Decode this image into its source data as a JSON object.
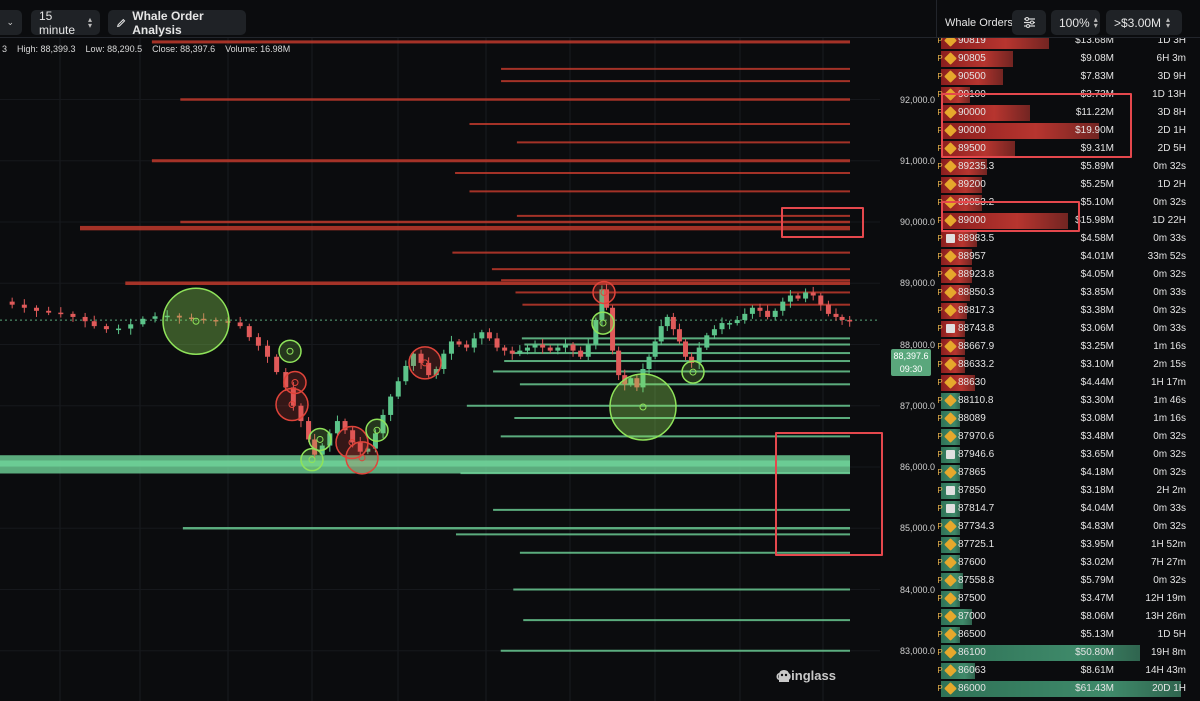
{
  "toolbar": {
    "interval": "15 minute",
    "whale_button": "Whale Order Analysis",
    "panel_title": "Whale Orders",
    "zoom": "100%",
    "min_size": ">$3.00M"
  },
  "ohlc": {
    "text": "3    High: 88,399.3    Low: 88,290.5    Close: 88,397.6    Volume: 16.98M"
  },
  "axis": {
    "labels": [
      "92,000.0",
      "91,000.0",
      "90,000.0",
      "89,000.0",
      "88,000.0",
      "87,000.0",
      "86,000.0",
      "85,000.0",
      "84,000.0",
      "83,000.0"
    ],
    "current_price": "88,397.6",
    "countdown": "09:30"
  },
  "watermark": "coinglass",
  "orders": [
    {
      "tag": "P",
      "icon": "binance",
      "price": "90819",
      "amount": "$13.68M",
      "time": "1D 3H",
      "side": "sell",
      "fill": 0.45
    },
    {
      "tag": "P",
      "icon": "binance",
      "price": "90805",
      "amount": "$9.08M",
      "time": "6H 3m",
      "side": "sell",
      "fill": 0.3
    },
    {
      "tag": "P",
      "icon": "binance",
      "price": "90500",
      "amount": "$7.83M",
      "time": "3D 9H",
      "side": "sell",
      "fill": 0.26
    },
    {
      "tag": "P",
      "icon": "binance",
      "price": "90100",
      "amount": "$3.73M",
      "time": "1D 13H",
      "side": "sell",
      "fill": 0.12
    },
    {
      "tag": "P",
      "icon": "binance",
      "price": "90000",
      "amount": "$11.22M",
      "time": "3D 8H",
      "side": "sell",
      "fill": 0.37
    },
    {
      "tag": "P",
      "icon": "binance",
      "price": "90000",
      "amount": "$19.90M",
      "time": "2D 1H",
      "side": "sell",
      "fill": 0.66
    },
    {
      "tag": "P",
      "icon": "binance",
      "price": "89500",
      "amount": "$9.31M",
      "time": "2D 5H",
      "side": "sell",
      "fill": 0.31
    },
    {
      "tag": "P",
      "icon": "binance",
      "price": "89235.3",
      "amount": "$5.89M",
      "time": "0m 32s",
      "side": "sell",
      "fill": 0.19
    },
    {
      "tag": "P",
      "icon": "binance",
      "price": "89200",
      "amount": "$5.25M",
      "time": "1D 2H",
      "side": "sell",
      "fill": 0.17
    },
    {
      "tag": "P",
      "icon": "binance",
      "price": "89053.2",
      "amount": "$5.10M",
      "time": "0m 32s",
      "side": "sell",
      "fill": 0.17
    },
    {
      "tag": "P",
      "icon": "binance",
      "price": "89000",
      "amount": "$15.98M",
      "time": "1D 22H",
      "side": "sell",
      "fill": 0.53
    },
    {
      "tag": "P",
      "icon": "okx",
      "price": "88983.5",
      "amount": "$4.58M",
      "time": "0m 33s",
      "side": "sell",
      "fill": 0.15
    },
    {
      "tag": "P",
      "icon": "binance",
      "price": "88957",
      "amount": "$4.01M",
      "time": "33m 52s",
      "side": "sell",
      "fill": 0.13
    },
    {
      "tag": "P",
      "icon": "binance",
      "price": "88923.8",
      "amount": "$4.05M",
      "time": "0m 32s",
      "side": "sell",
      "fill": 0.13
    },
    {
      "tag": "P",
      "icon": "binance",
      "price": "88850.3",
      "amount": "$3.85M",
      "time": "0m 33s",
      "side": "sell",
      "fill": 0.12
    },
    {
      "tag": "P",
      "icon": "binance",
      "price": "88817.3",
      "amount": "$3.38M",
      "time": "0m 32s",
      "side": "sell",
      "fill": 0.11
    },
    {
      "tag": "P",
      "icon": "okx",
      "price": "88743.8",
      "amount": "$3.06M",
      "time": "0m 33s",
      "side": "sell",
      "fill": 0.1
    },
    {
      "tag": "P",
      "icon": "binance",
      "price": "88667.9",
      "amount": "$3.25M",
      "time": "1m 16s",
      "side": "sell",
      "fill": 0.1
    },
    {
      "tag": "P",
      "icon": "binance",
      "price": "88633.2",
      "amount": "$3.10M",
      "time": "2m 15s",
      "side": "sell",
      "fill": 0.1
    },
    {
      "tag": "P",
      "icon": "binance",
      "price": "88630",
      "amount": "$4.44M",
      "time": "1H 17m",
      "side": "sell",
      "fill": 0.14
    },
    {
      "tag": "P",
      "icon": "binance",
      "price": "88110.8",
      "amount": "$3.30M",
      "time": "1m 46s",
      "side": "buy",
      "fill": 0.05
    },
    {
      "tag": "P",
      "icon": "binance",
      "price": "88089",
      "amount": "$3.08M",
      "time": "1m 16s",
      "side": "buy",
      "fill": 0.05
    },
    {
      "tag": "P",
      "icon": "binance",
      "price": "87970.6",
      "amount": "$3.48M",
      "time": "0m 32s",
      "side": "buy",
      "fill": 0.06
    },
    {
      "tag": "P",
      "icon": "okx",
      "price": "87946.6",
      "amount": "$3.65M",
      "time": "0m 32s",
      "side": "buy",
      "fill": 0.06
    },
    {
      "tag": "P",
      "icon": "binance",
      "price": "87865",
      "amount": "$4.18M",
      "time": "0m 32s",
      "side": "buy",
      "fill": 0.07
    },
    {
      "tag": "P",
      "icon": "okx",
      "price": "87850",
      "amount": "$3.18M",
      "time": "2H 2m",
      "side": "buy",
      "fill": 0.05
    },
    {
      "tag": "P",
      "icon": "okx",
      "price": "87814.7",
      "amount": "$4.04M",
      "time": "0m 33s",
      "side": "buy",
      "fill": 0.07
    },
    {
      "tag": "P",
      "icon": "binance",
      "price": "87734.3",
      "amount": "$4.83M",
      "time": "0m 32s",
      "side": "buy",
      "fill": 0.08
    },
    {
      "tag": "P",
      "icon": "binance",
      "price": "87725.1",
      "amount": "$3.95M",
      "time": "1H 52m",
      "side": "buy",
      "fill": 0.06
    },
    {
      "tag": "P",
      "icon": "binance",
      "price": "87600",
      "amount": "$3.02M",
      "time": "7H 27m",
      "side": "buy",
      "fill": 0.05
    },
    {
      "tag": "P",
      "icon": "binance",
      "price": "87558.8",
      "amount": "$5.79M",
      "time": "0m 32s",
      "side": "buy",
      "fill": 0.09
    },
    {
      "tag": "P",
      "icon": "binance",
      "price": "87500",
      "amount": "$3.47M",
      "time": "12H 19m",
      "side": "buy",
      "fill": 0.06
    },
    {
      "tag": "P",
      "icon": "binance",
      "price": "87000",
      "amount": "$8.06M",
      "time": "13H 26m",
      "side": "buy",
      "fill": 0.13
    },
    {
      "tag": "P",
      "icon": "binance",
      "price": "86500",
      "amount": "$5.13M",
      "time": "1D 5H",
      "side": "buy",
      "fill": 0.08
    },
    {
      "tag": "P",
      "icon": "binance",
      "price": "86100",
      "amount": "$50.80M",
      "time": "19H 8m",
      "side": "buy",
      "fill": 0.83
    },
    {
      "tag": "P",
      "icon": "binance",
      "price": "86063",
      "amount": "$8.61M",
      "time": "14H 43m",
      "side": "buy",
      "fill": 0.14
    },
    {
      "tag": "P",
      "icon": "binance",
      "price": "86000",
      "amount": "$61.43M",
      "time": "20D 1H",
      "side": "buy",
      "fill": 1.0
    }
  ],
  "colors": {
    "sell": "#c0392b",
    "buy": "#6fd49a",
    "highlight": "#e5484d",
    "up_candle": "#5cc48a",
    "down_candle": "#e05a5a",
    "bubble_green": "#8fe35a",
    "bubble_red": "#e0443a"
  },
  "chart_data": {
    "type": "candlestick",
    "instrument_interval": "15 minute",
    "ylim": [
      82700,
      93000
    ],
    "current_price": 88397.6,
    "sell_walls": [
      {
        "price": 92940,
        "usd_m": 13.68
      },
      {
        "price": 92500,
        "usd_m": 5.1
      },
      {
        "price": 92300,
        "usd_m": 5.1
      },
      {
        "price": 92000,
        "usd_m": 11.22
      },
      {
        "price": 91600,
        "usd_m": 7.83
      },
      {
        "price": 91300,
        "usd_m": 3.73
      },
      {
        "price": 91000,
        "usd_m": 13.68
      },
      {
        "price": 90800,
        "usd_m": 9.08
      },
      {
        "price": 90500,
        "usd_m": 7.83
      },
      {
        "price": 90100,
        "usd_m": 3.73
      },
      {
        "price": 90000,
        "usd_m": 11.22
      },
      {
        "price": 89900,
        "usd_m": 19.9
      },
      {
        "price": 89500,
        "usd_m": 9.31
      },
      {
        "price": 89230,
        "usd_m": 5.89
      },
      {
        "price": 89050,
        "usd_m": 5.1
      },
      {
        "price": 89000,
        "usd_m": 15.98
      },
      {
        "price": 88850,
        "usd_m": 3.85
      },
      {
        "price": 88650,
        "usd_m": 3.25
      }
    ],
    "buy_walls": [
      {
        "price": 88100,
        "usd_m": 3.3
      },
      {
        "price": 88000,
        "usd_m": 3.08
      },
      {
        "price": 87860,
        "usd_m": 4.18
      },
      {
        "price": 87730,
        "usd_m": 4.83
      },
      {
        "price": 87560,
        "usd_m": 5.79
      },
      {
        "price": 87350,
        "usd_m": 3.47
      },
      {
        "price": 87000,
        "usd_m": 8.06
      },
      {
        "price": 86800,
        "usd_m": 3.95
      },
      {
        "price": 86500,
        "usd_m": 5.13
      },
      {
        "price": 86100,
        "usd_m": 50.8
      },
      {
        "price": 86000,
        "usd_m": 61.43
      },
      {
        "price": 85900,
        "usd_m": 8.61
      },
      {
        "price": 85300,
        "usd_m": 5.79
      },
      {
        "price": 85000,
        "usd_m": 11.0
      },
      {
        "price": 84900,
        "usd_m": 9.0
      },
      {
        "price": 84600,
        "usd_m": 3.47
      },
      {
        "price": 84000,
        "usd_m": 4.04
      },
      {
        "price": 83500,
        "usd_m": 3.18
      },
      {
        "price": 83000,
        "usd_m": 5.13
      }
    ],
    "close_path": [
      [
        0,
        88700
      ],
      [
        8,
        88650
      ],
      [
        16,
        88600
      ],
      [
        24,
        88550
      ],
      [
        32,
        88520
      ],
      [
        40,
        88500
      ],
      [
        48,
        88450
      ],
      [
        56,
        88380
      ],
      [
        62,
        88300
      ],
      [
        70,
        88250
      ],
      [
        78,
        88260
      ],
      [
        86,
        88330
      ],
      [
        94,
        88420
      ],
      [
        102,
        88460
      ],
      [
        110,
        88470
      ],
      [
        118,
        88440
      ],
      [
        126,
        88420
      ],
      [
        134,
        88400
      ],
      [
        142,
        88380
      ],
      [
        150,
        88360
      ],
      [
        158,
        88300
      ],
      [
        164,
        88120
      ],
      [
        170,
        87980
      ],
      [
        176,
        87800
      ],
      [
        182,
        87550
      ],
      [
        188,
        87300
      ],
      [
        193,
        87000
      ],
      [
        198,
        86750
      ],
      [
        203,
        86450
      ],
      [
        207,
        86200
      ],
      [
        212,
        86350
      ],
      [
        217,
        86550
      ],
      [
        222,
        86750
      ],
      [
        227,
        86600
      ],
      [
        232,
        86400
      ],
      [
        237,
        86250
      ],
      [
        242,
        86300
      ],
      [
        247,
        86550
      ],
      [
        252,
        86850
      ],
      [
        257,
        87150
      ],
      [
        262,
        87400
      ],
      [
        267,
        87650
      ],
      [
        272,
        87850
      ],
      [
        277,
        87700
      ],
      [
        282,
        87500
      ],
      [
        287,
        87600
      ],
      [
        292,
        87850
      ],
      [
        297,
        88050
      ],
      [
        302,
        88000
      ],
      [
        307,
        87950
      ],
      [
        312,
        88100
      ],
      [
        317,
        88200
      ],
      [
        322,
        88100
      ],
      [
        327,
        87950
      ],
      [
        332,
        87900
      ],
      [
        337,
        87850
      ],
      [
        342,
        87900
      ],
      [
        347,
        87950
      ],
      [
        352,
        88000
      ],
      [
        357,
        87950
      ],
      [
        362,
        87900
      ],
      [
        367,
        87950
      ],
      [
        372,
        88000
      ],
      [
        377,
        87900
      ],
      [
        382,
        87800
      ],
      [
        387,
        88000
      ],
      [
        392,
        88400
      ],
      [
        396,
        88900
      ],
      [
        399,
        88600
      ],
      [
        403,
        87900
      ],
      [
        407,
        87500
      ],
      [
        411,
        87350
      ],
      [
        415,
        87450
      ],
      [
        419,
        87300
      ],
      [
        423,
        87600
      ],
      [
        427,
        87800
      ],
      [
        431,
        88050
      ],
      [
        435,
        88300
      ],
      [
        439,
        88450
      ],
      [
        443,
        88250
      ],
      [
        447,
        88050
      ],
      [
        451,
        87800
      ],
      [
        455,
        87700
      ],
      [
        460,
        87950
      ],
      [
        465,
        88150
      ],
      [
        470,
        88250
      ],
      [
        475,
        88350
      ],
      [
        480,
        88350
      ],
      [
        485,
        88400
      ],
      [
        490,
        88500
      ],
      [
        495,
        88600
      ],
      [
        500,
        88550
      ],
      [
        505,
        88450
      ],
      [
        510,
        88550
      ],
      [
        515,
        88700
      ],
      [
        520,
        88800
      ],
      [
        525,
        88750
      ],
      [
        530,
        88850
      ],
      [
        535,
        88800
      ],
      [
        540,
        88650
      ],
      [
        545,
        88500
      ],
      [
        550,
        88450
      ],
      [
        554,
        88400
      ],
      [
        559,
        88390
      ]
    ],
    "bubbles": [
      {
        "x": 196,
        "price": 88380,
        "size": "large",
        "side": "buy"
      },
      {
        "x": 290,
        "price": 87890,
        "size": "small",
        "side": "buy"
      },
      {
        "x": 292,
        "price": 87020,
        "size": "medium",
        "side": "sell"
      },
      {
        "x": 295,
        "price": 87380,
        "size": "small",
        "side": "sell"
      },
      {
        "x": 312,
        "price": 86120,
        "size": "small",
        "side": "buy"
      },
      {
        "x": 320,
        "price": 86450,
        "size": "small",
        "side": "buy"
      },
      {
        "x": 352,
        "price": 86400,
        "size": "medium",
        "side": "sell"
      },
      {
        "x": 362,
        "price": 86150,
        "size": "medium",
        "side": "sell"
      },
      {
        "x": 377,
        "price": 86600,
        "size": "small",
        "side": "buy"
      },
      {
        "x": 425,
        "price": 87700,
        "size": "medium",
        "side": "sell"
      },
      {
        "x": 604,
        "price": 88850,
        "size": "small",
        "side": "sell"
      },
      {
        "x": 603,
        "price": 88350,
        "size": "small",
        "side": "buy"
      },
      {
        "x": 643,
        "price": 86980,
        "size": "large",
        "side": "buy"
      },
      {
        "x": 693,
        "price": 87550,
        "size": "small",
        "side": "buy"
      }
    ]
  }
}
